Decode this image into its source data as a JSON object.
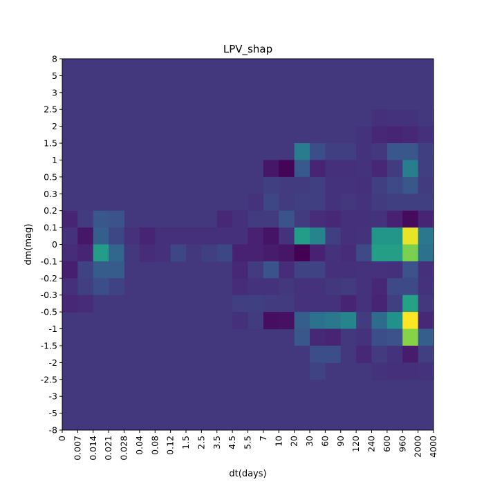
{
  "chart_data": {
    "type": "heatmap",
    "title": "LPV_shap",
    "xlabel": "dt(days)",
    "ylabel": "dm(mag)",
    "x_ticks": [
      "0",
      "0.007",
      "0.014",
      "0.021",
      "0.028",
      "0.04",
      "0.08",
      "0.12",
      "1.5",
      "2.5",
      "3.5",
      "4.5",
      "5.5",
      "7",
      "10",
      "20",
      "30",
      "60",
      "90",
      "120",
      "240",
      "600",
      "960",
      "2000",
      "4000"
    ],
    "y_ticks": [
      "8",
      "5",
      "3",
      "2.5",
      "2",
      "1.5",
      "1",
      "0.5",
      "0.3",
      "0.2",
      "0.1",
      "0",
      "-0.1",
      "-0.2",
      "-0.3",
      "-0.5",
      "-1",
      "-1.5",
      "-2",
      "-2.5",
      "-3",
      "-5",
      "-8"
    ],
    "colormap": "viridis",
    "value_range": [
      0,
      1
    ],
    "background_value": 0.18,
    "cells": [
      [
        20,
        3,
        0.16
      ],
      [
        21,
        3,
        0.17
      ],
      [
        22,
        3,
        0.17
      ],
      [
        23,
        3,
        0.18
      ],
      [
        19,
        4,
        0.17
      ],
      [
        20,
        4,
        0.14
      ],
      [
        21,
        4,
        0.13
      ],
      [
        22,
        4,
        0.14
      ],
      [
        23,
        4,
        0.16
      ],
      [
        15,
        5,
        0.42
      ],
      [
        16,
        5,
        0.24
      ],
      [
        17,
        5,
        0.2
      ],
      [
        18,
        5,
        0.2
      ],
      [
        19,
        5,
        0.17
      ],
      [
        20,
        5,
        0.18
      ],
      [
        21,
        5,
        0.27
      ],
      [
        22,
        5,
        0.27
      ],
      [
        23,
        5,
        0.2
      ],
      [
        13,
        6,
        0.08
      ],
      [
        14,
        6,
        0.01
      ],
      [
        15,
        6,
        0.28
      ],
      [
        16,
        6,
        0.13
      ],
      [
        17,
        6,
        0.16
      ],
      [
        18,
        6,
        0.16
      ],
      [
        19,
        6,
        0.17
      ],
      [
        20,
        6,
        0.14
      ],
      [
        21,
        6,
        0.19
      ],
      [
        22,
        6,
        0.43
      ],
      [
        23,
        6,
        0.2
      ],
      [
        13,
        7,
        0.2
      ],
      [
        14,
        7,
        0.19
      ],
      [
        15,
        7,
        0.19
      ],
      [
        16,
        7,
        0.2
      ],
      [
        17,
        7,
        0.17
      ],
      [
        18,
        7,
        0.17
      ],
      [
        19,
        7,
        0.16
      ],
      [
        20,
        7,
        0.2
      ],
      [
        21,
        7,
        0.23
      ],
      [
        22,
        7,
        0.27
      ],
      [
        23,
        7,
        0.19
      ],
      [
        11,
        8,
        0.18
      ],
      [
        12,
        8,
        0.17
      ],
      [
        13,
        8,
        0.22
      ],
      [
        14,
        8,
        0.19
      ],
      [
        15,
        8,
        0.2
      ],
      [
        16,
        8,
        0.2
      ],
      [
        17,
        8,
        0.17
      ],
      [
        18,
        8,
        0.18
      ],
      [
        19,
        8,
        0.17
      ],
      [
        20,
        8,
        0.19
      ],
      [
        21,
        8,
        0.2
      ],
      [
        22,
        8,
        0.2
      ],
      [
        23,
        8,
        0.2
      ],
      [
        0,
        9,
        0.13
      ],
      [
        1,
        9,
        0.19
      ],
      [
        2,
        9,
        0.27
      ],
      [
        3,
        9,
        0.25
      ],
      [
        10,
        9,
        0.14
      ],
      [
        11,
        9,
        0.16
      ],
      [
        12,
        9,
        0.19
      ],
      [
        13,
        9,
        0.19
      ],
      [
        14,
        9,
        0.26
      ],
      [
        15,
        9,
        0.19
      ],
      [
        16,
        9,
        0.15
      ],
      [
        17,
        9,
        0.14
      ],
      [
        18,
        9,
        0.16
      ],
      [
        19,
        9,
        0.16
      ],
      [
        20,
        9,
        0.17
      ],
      [
        21,
        9,
        0.12
      ],
      [
        22,
        9,
        0.04
      ],
      [
        23,
        9,
        0.13
      ],
      [
        0,
        10,
        0.17
      ],
      [
        1,
        10,
        0.08
      ],
      [
        2,
        10,
        0.3
      ],
      [
        3,
        10,
        0.22
      ],
      [
        4,
        10,
        0.17
      ],
      [
        5,
        10,
        0.13
      ],
      [
        6,
        10,
        0.16
      ],
      [
        7,
        10,
        0.16
      ],
      [
        8,
        10,
        0.16
      ],
      [
        9,
        10,
        0.16
      ],
      [
        10,
        10,
        0.16
      ],
      [
        11,
        10,
        0.16
      ],
      [
        12,
        10,
        0.12
      ],
      [
        13,
        10,
        0.07
      ],
      [
        14,
        10,
        0.17
      ],
      [
        15,
        10,
        0.55
      ],
      [
        16,
        10,
        0.45
      ],
      [
        17,
        10,
        0.2
      ],
      [
        18,
        10,
        0.16
      ],
      [
        19,
        10,
        0.17
      ],
      [
        20,
        10,
        0.53
      ],
      [
        21,
        10,
        0.53
      ],
      [
        22,
        10,
        0.97
      ],
      [
        23,
        10,
        0.4
      ],
      [
        0,
        11,
        0.15
      ],
      [
        1,
        11,
        0.13
      ],
      [
        2,
        11,
        0.55
      ],
      [
        3,
        11,
        0.33
      ],
      [
        4,
        11,
        0.18
      ],
      [
        5,
        11,
        0.15
      ],
      [
        6,
        11,
        0.16
      ],
      [
        7,
        11,
        0.22
      ],
      [
        8,
        11,
        0.18
      ],
      [
        9,
        11,
        0.2
      ],
      [
        10,
        11,
        0.22
      ],
      [
        11,
        11,
        0.12
      ],
      [
        12,
        11,
        0.12
      ],
      [
        13,
        11,
        0.1
      ],
      [
        14,
        11,
        0.08
      ],
      [
        15,
        11,
        0.0
      ],
      [
        16,
        11,
        0.12
      ],
      [
        17,
        11,
        0.17
      ],
      [
        18,
        11,
        0.15
      ],
      [
        19,
        11,
        0.23
      ],
      [
        20,
        11,
        0.56
      ],
      [
        21,
        11,
        0.56
      ],
      [
        22,
        11,
        0.8
      ],
      [
        23,
        11,
        0.38
      ],
      [
        0,
        12,
        0.11
      ],
      [
        1,
        12,
        0.21
      ],
      [
        2,
        12,
        0.29
      ],
      [
        3,
        12,
        0.29
      ],
      [
        11,
        12,
        0.14
      ],
      [
        12,
        12,
        0.19
      ],
      [
        13,
        12,
        0.26
      ],
      [
        14,
        12,
        0.15
      ],
      [
        15,
        12,
        0.21
      ],
      [
        16,
        12,
        0.21
      ],
      [
        17,
        12,
        0.16
      ],
      [
        18,
        12,
        0.16
      ],
      [
        19,
        12,
        0.17
      ],
      [
        20,
        12,
        0.17
      ],
      [
        21,
        12,
        0.16
      ],
      [
        22,
        12,
        0.25
      ],
      [
        23,
        12,
        0.16
      ],
      [
        0,
        13,
        0.16
      ],
      [
        1,
        13,
        0.2
      ],
      [
        2,
        13,
        0.24
      ],
      [
        3,
        13,
        0.21
      ],
      [
        11,
        13,
        0.15
      ],
      [
        12,
        13,
        0.17
      ],
      [
        13,
        13,
        0.17
      ],
      [
        14,
        13,
        0.18
      ],
      [
        15,
        13,
        0.17
      ],
      [
        16,
        13,
        0.17
      ],
      [
        17,
        13,
        0.18
      ],
      [
        18,
        13,
        0.19
      ],
      [
        19,
        13,
        0.17
      ],
      [
        20,
        13,
        0.14
      ],
      [
        21,
        13,
        0.23
      ],
      [
        22,
        13,
        0.23
      ],
      [
        23,
        13,
        0.17
      ],
      [
        0,
        14,
        0.14
      ],
      [
        1,
        14,
        0.15
      ],
      [
        2,
        14,
        0.18
      ],
      [
        3,
        14,
        0.18
      ],
      [
        11,
        14,
        0.2
      ],
      [
        12,
        14,
        0.2
      ],
      [
        13,
        14,
        0.19
      ],
      [
        14,
        14,
        0.19
      ],
      [
        15,
        14,
        0.17
      ],
      [
        16,
        14,
        0.17
      ],
      [
        17,
        14,
        0.17
      ],
      [
        18,
        14,
        0.13
      ],
      [
        19,
        14,
        0.17
      ],
      [
        20,
        14,
        0.13
      ],
      [
        21,
        14,
        0.2
      ],
      [
        22,
        14,
        0.58
      ],
      [
        23,
        14,
        0.18
      ],
      [
        11,
        15,
        0.16
      ],
      [
        12,
        15,
        0.19
      ],
      [
        13,
        15,
        0.05
      ],
      [
        14,
        15,
        0.06
      ],
      [
        15,
        15,
        0.3
      ],
      [
        16,
        15,
        0.38
      ],
      [
        17,
        15,
        0.4
      ],
      [
        18,
        15,
        0.45
      ],
      [
        19,
        15,
        0.19
      ],
      [
        20,
        15,
        0.35
      ],
      [
        21,
        15,
        0.5
      ],
      [
        22,
        15,
        1.0
      ],
      [
        23,
        15,
        0.14
      ],
      [
        15,
        16,
        0.27
      ],
      [
        16,
        16,
        0.14
      ],
      [
        17,
        16,
        0.13
      ],
      [
        18,
        16,
        0.18
      ],
      [
        19,
        16,
        0.17
      ],
      [
        20,
        16,
        0.24
      ],
      [
        21,
        16,
        0.25
      ],
      [
        22,
        16,
        0.82
      ],
      [
        23,
        16,
        0.3
      ],
      [
        15,
        17,
        0.18
      ],
      [
        16,
        17,
        0.24
      ],
      [
        17,
        17,
        0.24
      ],
      [
        18,
        17,
        0.18
      ],
      [
        19,
        17,
        0.14
      ],
      [
        20,
        17,
        0.19
      ],
      [
        21,
        17,
        0.17
      ],
      [
        22,
        17,
        0.1
      ],
      [
        23,
        17,
        0.2
      ],
      [
        16,
        18,
        0.21
      ],
      [
        20,
        18,
        0.17
      ],
      [
        21,
        18,
        0.16
      ],
      [
        22,
        18,
        0.16
      ],
      [
        23,
        18,
        0.17
      ]
    ]
  }
}
